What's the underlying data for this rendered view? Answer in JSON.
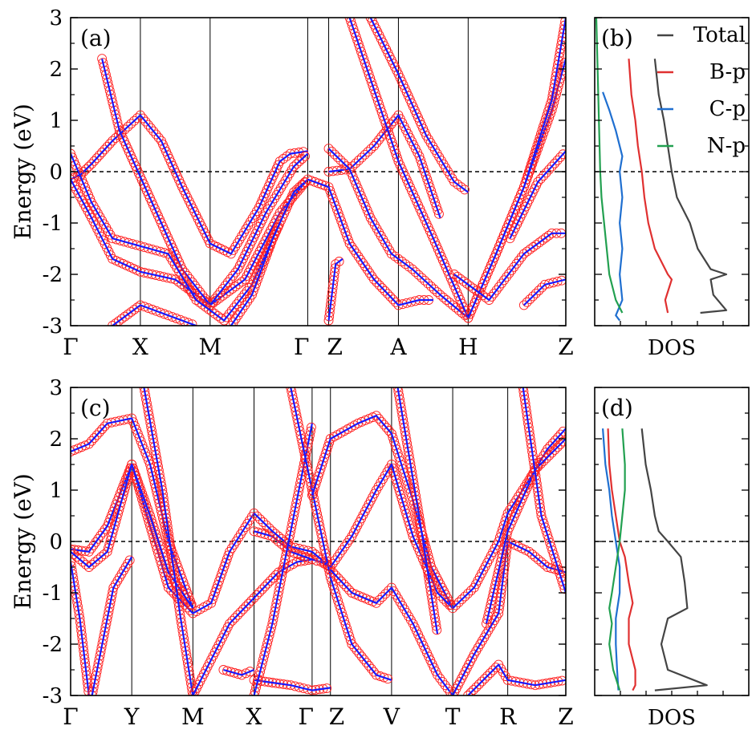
{
  "chart_data": [
    {
      "panel_label": "(a)",
      "type": "line",
      "ylabel": "Energy (eV)",
      "ylim": [
        -3,
        3
      ],
      "yticks": [
        "-3",
        "-2",
        "-1",
        "0",
        "1",
        "2",
        "3"
      ],
      "k_labels": [
        "Γ",
        "X",
        "M",
        "Γ",
        "Z",
        "A",
        "H",
        "Z"
      ],
      "k_positions": [
        0,
        1,
        2,
        3.4,
        3.7,
        4.7,
        5.7,
        7.1
      ],
      "fermi_level": 0,
      "bands": [
        {
          "name": "",
          "x": [
            0,
            0.15,
            0.3,
            0.6,
            1,
            1.3,
            1.6,
            2,
            2.3,
            2.7,
            3,
            3.15,
            3.4
          ],
          "y": [
            -0.15,
            -0.05,
            0.15,
            0.6,
            1.1,
            0.6,
            -0.3,
            -1.4,
            -1.6,
            -0.7,
            0.2,
            0.35,
            0.4
          ]
        },
        {
          "name": "",
          "x": [
            0,
            0.3,
            0.6,
            1,
            1.5,
            2,
            2.5,
            3,
            3.4
          ],
          "y": [
            -0.15,
            -0.9,
            -1.7,
            -1.95,
            -2.1,
            -2.6,
            -2.1,
            -0.8,
            -0.15
          ]
        },
        {
          "name": "",
          "x": [
            0.45,
            0.7,
            1,
            1.3,
            1.6,
            2,
            2.4,
            2.8,
            3.2,
            3.4
          ],
          "y": [
            2.2,
            0.8,
            -0.1,
            -1.0,
            -1.9,
            -2.6,
            -1.9,
            -0.8,
            0.1,
            0.35
          ]
        },
        {
          "name": "",
          "x": [
            0,
            0.3,
            0.6,
            1,
            1.4,
            1.8,
            2.2,
            2.6,
            3
          ],
          "y": [
            0.35,
            -0.6,
            -1.3,
            -1.45,
            -1.6,
            -2.5,
            -2.9,
            -2.2,
            -1.0
          ]
        },
        {
          "name": "",
          "x": [
            0.6,
            1,
            1.4,
            1.8
          ],
          "y": [
            -3,
            -2.6,
            -2.8,
            -3
          ]
        },
        {
          "name": "",
          "x": [
            2.3,
            2.6,
            2.9,
            3.2,
            3.4
          ],
          "y": [
            -3,
            -2.4,
            -1.3,
            -0.4,
            -0.15
          ]
        },
        {
          "name": "",
          "x": [
            3.7,
            3.8,
            3.9
          ],
          "y": [
            -2.9,
            -1.8,
            -1.7
          ]
        },
        {
          "name": "",
          "x": [
            3.4,
            3.7,
            4.0,
            4.35,
            4.7,
            5.0,
            5.2
          ],
          "y": [
            -0.15,
            -0.3,
            -1.4,
            -2.1,
            -2.6,
            -2.5,
            -2.5
          ]
        },
        {
          "name": "",
          "x": [
            3.7,
            4.0,
            4.35,
            4.7,
            5.0,
            5.3
          ],
          "y": [
            0.0,
            0.05,
            0.5,
            1.1,
            0.3,
            -0.9
          ]
        },
        {
          "name": "",
          "x": [
            3.7,
            4.0,
            4.3,
            4.6,
            4.9,
            5.3,
            5.7
          ],
          "y": [
            0.45,
            0.05,
            -0.9,
            -1.6,
            -1.9,
            -2.4,
            -2.85
          ]
        },
        {
          "name": "",
          "x": [
            4.0,
            4.35,
            4.7,
            5.2,
            5.7,
            6.1,
            6.5,
            6.9,
            7.1
          ],
          "y": [
            3,
            1.6,
            0.2,
            -1.3,
            -2.85,
            -1.6,
            -0.3,
            1.2,
            2.2
          ]
        },
        {
          "name": "",
          "x": [
            4.3,
            4.7,
            5.1,
            5.5,
            5.7
          ],
          "y": [
            3,
            1.9,
            0.7,
            -0.2,
            -0.4
          ]
        },
        {
          "name": "",
          "x": [
            5.7,
            6.1,
            6.5,
            6.9,
            7.1
          ],
          "y": [
            -2.85,
            -1.6,
            -0.3,
            1.4,
            3.0
          ]
        },
        {
          "name": "",
          "x": [
            5.5,
            6.0,
            6.5,
            6.9,
            7.1
          ],
          "y": [
            -2.0,
            -2.5,
            -1.6,
            -1.2,
            -1.2
          ]
        },
        {
          "name": "",
          "x": [
            6.5,
            6.8,
            7.1
          ],
          "y": [
            -2.6,
            -2.2,
            -2.1
          ]
        },
        {
          "name": "",
          "x": [
            6.3,
            6.7,
            7.1
          ],
          "y": [
            -1.3,
            -0.2,
            0.4
          ]
        }
      ]
    },
    {
      "panel_label": "(b)",
      "type": "line",
      "xlabel": "DOS",
      "ylim": [
        -3,
        3
      ],
      "legend": [
        "Total",
        "B-p",
        "C-p",
        "N-p"
      ],
      "colors": {
        "Total": "#444444",
        "B-p": "#e03030",
        "C-p": "#1f6fd0",
        "N-p": "#22a050"
      },
      "series": [
        {
          "name": "Total",
          "energy": [
            2.2,
            1.5,
            1.0,
            0.5,
            0.0,
            -0.5,
            -1.0,
            -1.5,
            -1.9,
            -2.0,
            -2.1,
            -2.4,
            -2.7,
            -2.75
          ],
          "dos": [
            0.45,
            0.48,
            0.52,
            0.55,
            0.58,
            0.62,
            0.72,
            0.78,
            0.88,
            1.0,
            0.88,
            0.9,
            1.0,
            0.8
          ]
        },
        {
          "name": "B-p",
          "energy": [
            2.2,
            1.5,
            1.0,
            0.5,
            0.0,
            -0.5,
            -1.0,
            -1.5,
            -2.0,
            -2.1,
            -2.5,
            -2.75
          ],
          "dos": [
            0.25,
            0.27,
            0.3,
            0.32,
            0.35,
            0.37,
            0.4,
            0.45,
            0.55,
            0.58,
            0.53,
            0.55
          ]
        },
        {
          "name": "C-p",
          "energy": [
            1.55,
            1.2,
            0.8,
            0.3,
            0.0,
            -0.5,
            -1.0,
            -1.5,
            -2.0,
            -2.5,
            -2.8,
            -2.9
          ],
          "dos": [
            0.05,
            0.1,
            0.15,
            0.2,
            0.18,
            0.2,
            0.18,
            0.2,
            0.18,
            0.2,
            0.15,
            0.18
          ]
        },
        {
          "name": "N-p",
          "energy": [
            3.0,
            2.0,
            1.0,
            0.0,
            -0.5,
            -1.0,
            -1.5,
            -2.0,
            -2.5,
            -2.75
          ],
          "dos": [
            0.0,
            0.01,
            0.02,
            0.03,
            0.04,
            0.06,
            0.08,
            0.1,
            0.15,
            0.2
          ]
        }
      ]
    },
    {
      "panel_label": "(c)",
      "type": "line",
      "ylabel": "Energy (eV)",
      "ylim": [
        -3,
        3
      ],
      "yticks": [
        "-3",
        "-2",
        "-1",
        "0",
        "1",
        "2",
        "3"
      ],
      "k_labels": [
        "Γ",
        "Y",
        "M",
        "X",
        "Γ",
        "Z",
        "V",
        "T",
        "R",
        "Z"
      ],
      "k_positions": [
        0,
        1,
        2,
        3,
        3.95,
        4.25,
        5.25,
        6.25,
        7.15,
        8.1
      ],
      "fermi_level": 0,
      "bands": [
        {
          "name": "",
          "x": [
            0,
            0.3,
            0.6,
            1,
            1.3,
            1.6,
            2,
            2.3,
            2.6,
            3
          ],
          "y": [
            -0.15,
            -0.2,
            0.3,
            1.5,
            0.3,
            -0.9,
            -1.4,
            -1.2,
            -0.2,
            0.55
          ]
        },
        {
          "name": "",
          "x": [
            0,
            0.3,
            0.6,
            1,
            1.3,
            1.6,
            2
          ],
          "y": [
            1.75,
            1.9,
            2.3,
            2.4,
            1.5,
            0.0,
            -1.3
          ]
        },
        {
          "name": "",
          "x": [
            0,
            0.3,
            0.6,
            1,
            1.3,
            1.6,
            2
          ],
          "y": [
            -0.2,
            -0.5,
            -0.2,
            1.5,
            0.5,
            -0.6,
            -1.3
          ]
        },
        {
          "name": "",
          "x": [
            0,
            0.15,
            0.3
          ],
          "y": [
            -0.4,
            -1.5,
            -3
          ]
        },
        {
          "name": "",
          "x": [
            0.35,
            0.7,
            1
          ],
          "y": [
            -3,
            -0.9,
            -0.3
          ]
        },
        {
          "name": "",
          "x": [
            1.2,
            1.5,
            1.8,
            2
          ],
          "y": [
            3,
            1.0,
            -1.5,
            -3
          ]
        },
        {
          "name": "",
          "x": [
            2,
            2.3,
            2.6,
            3,
            3.4,
            3.7,
            3.95
          ],
          "y": [
            -3,
            -2.3,
            -1.6,
            -1.1,
            -0.6,
            -0.4,
            -0.35
          ]
        },
        {
          "name": "",
          "x": [
            3,
            3.3,
            3.6,
            3.95,
            4.1,
            4.25
          ],
          "y": [
            0.2,
            0.1,
            -0.2,
            -0.35,
            -0.4,
            -0.5
          ]
        },
        {
          "name": "",
          "x": [
            3,
            3.3,
            3.6,
            3.95,
            4.25
          ],
          "y": [
            0.55,
            0.2,
            -0.1,
            -0.2,
            -0.5
          ]
        },
        {
          "name": "",
          "x": [
            3.0,
            3.3,
            3.6,
            3.95,
            4.25
          ],
          "y": [
            -2.7,
            -2.75,
            -2.8,
            -2.9,
            -2.85
          ]
        },
        {
          "name": "",
          "x": [
            2.5,
            2.8,
            3.0
          ],
          "y": [
            -2.5,
            -2.6,
            -2.5
          ]
        },
        {
          "name": "",
          "x": [
            3.0,
            3.3,
            3.6,
            3.95
          ],
          "y": [
            -3,
            -1.6,
            0.2,
            2.3
          ]
        },
        {
          "name": "",
          "x": [
            3.6,
            3.95,
            4.25,
            4.6,
            5.0,
            5.25
          ],
          "y": [
            3,
            1.0,
            -0.7,
            -2.0,
            -2.6,
            -2.7
          ]
        },
        {
          "name": "",
          "x": [
            3.95,
            4.25,
            4.7,
            5.0,
            5.25,
            5.6,
            5.9,
            6.25
          ],
          "y": [
            0.9,
            2.0,
            2.3,
            2.45,
            2.1,
            0.8,
            -0.5,
            -1.3
          ]
        },
        {
          "name": "",
          "x": [
            4.25,
            4.6,
            5.0,
            5.25,
            5.6,
            6.0,
            6.25
          ],
          "y": [
            -0.5,
            0.1,
            1.0,
            1.5,
            0.1,
            -1.0,
            -1.3
          ]
        },
        {
          "name": "",
          "x": [
            4.25,
            4.6,
            5.0,
            5.25,
            5.6,
            6.0,
            6.25
          ],
          "y": [
            -0.55,
            -1.0,
            -1.2,
            -0.9,
            -1.6,
            -2.6,
            -3
          ]
        },
        {
          "name": "",
          "x": [
            5.35,
            5.7,
            6.0
          ],
          "y": [
            3,
            0.5,
            -1.8
          ]
        },
        {
          "name": "",
          "x": [
            6.25,
            6.6,
            7.0,
            7.15,
            7.5,
            7.8,
            8.1
          ],
          "y": [
            -1.3,
            -0.9,
            0.0,
            0.55,
            1.2,
            1.8,
            2.2
          ]
        },
        {
          "name": "",
          "x": [
            6.25,
            6.6,
            7.0,
            7.15,
            7.5,
            7.8,
            8.1
          ],
          "y": [
            -3,
            -2.2,
            -1.4,
            0.0,
            -0.2,
            -0.5,
            -0.6
          ]
        },
        {
          "name": "",
          "x": [
            6.5,
            7.0,
            7.15,
            7.6,
            8.1
          ],
          "y": [
            -3,
            -2.4,
            -2.7,
            -2.8,
            -2.7
          ]
        },
        {
          "name": "",
          "x": [
            6.8,
            7.15,
            7.6,
            8.1
          ],
          "y": [
            -1.6,
            0.2,
            1.4,
            2.0
          ]
        },
        {
          "name": "",
          "x": [
            7.4,
            7.7,
            8.1
          ],
          "y": [
            3,
            0.5,
            -1.0
          ]
        }
      ]
    },
    {
      "panel_label": "(d)",
      "type": "line",
      "xlabel": "DOS",
      "ylim": [
        -3,
        3
      ],
      "colors": {
        "Total": "#444444",
        "B-p": "#e03030",
        "C-p": "#1f6fd0",
        "N-p": "#22a050"
      },
      "series": [
        {
          "name": "Total",
          "energy": [
            2.2,
            1.5,
            1.0,
            0.5,
            0.2,
            0.0,
            -0.3,
            -0.8,
            -1.3,
            -1.5,
            -2.0,
            -2.5,
            -2.8,
            -2.9
          ],
          "dos": [
            0.35,
            0.38,
            0.42,
            0.45,
            0.48,
            0.55,
            0.65,
            0.68,
            0.7,
            0.55,
            0.5,
            0.55,
            0.85,
            0.45
          ]
        },
        {
          "name": "B-p",
          "energy": [
            2.2,
            1.5,
            1.0,
            0.5,
            0.0,
            -0.3,
            -0.8,
            -1.2,
            -1.5,
            -2.0,
            -2.5,
            -2.8,
            -2.9
          ],
          "dos": [
            0.09,
            0.1,
            0.12,
            0.15,
            0.18,
            0.22,
            0.25,
            0.28,
            0.25,
            0.25,
            0.3,
            0.3,
            0.28
          ]
        },
        {
          "name": "C-p",
          "energy": [
            2.2,
            1.5,
            1.0,
            0.5,
            0.0,
            -0.5,
            -1.0,
            -1.5,
            -2.0,
            -2.5,
            -2.9
          ],
          "dos": [
            0.05,
            0.07,
            0.1,
            0.12,
            0.15,
            0.18,
            0.18,
            0.15,
            0.15,
            0.16,
            0.17
          ]
        },
        {
          "name": "N-p",
          "energy": [
            2.2,
            1.5,
            1.0,
            0.5,
            0.0,
            -0.5,
            -1.0,
            -1.3,
            -1.6,
            -2.0,
            -2.5,
            -2.9
          ],
          "dos": [
            0.2,
            0.22,
            0.22,
            0.2,
            0.18,
            0.15,
            0.12,
            0.1,
            0.12,
            0.1,
            0.13,
            0.18
          ]
        }
      ]
    }
  ],
  "colors": {
    "band_line": "#1a1aff",
    "band_marker": "#ff2020",
    "fermi": "#000000"
  }
}
